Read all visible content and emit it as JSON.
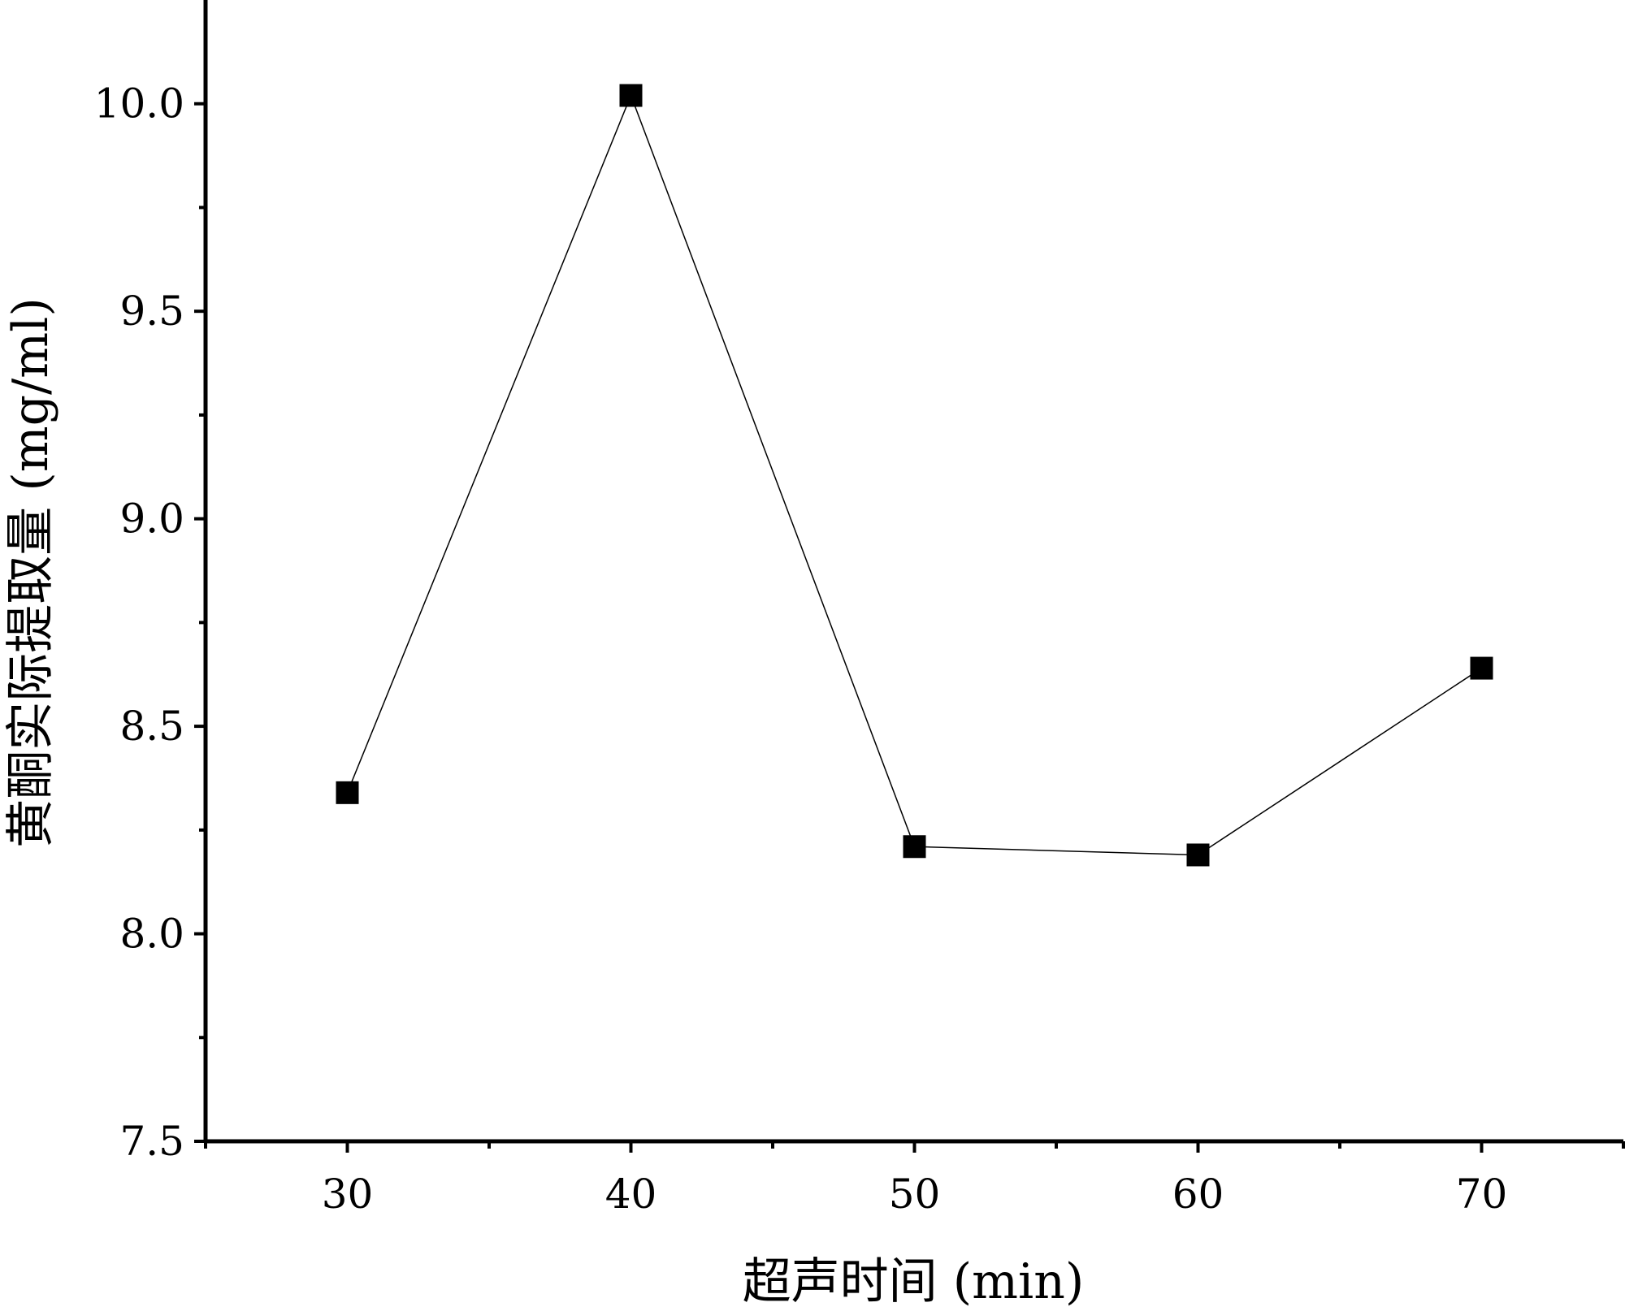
{
  "chart_data": {
    "type": "line",
    "xlabel": "超声时间 (min)",
    "ylabel": "黄酮实际提取量 (mg/ml)",
    "x": [
      30,
      40,
      50,
      60,
      70
    ],
    "series": [
      {
        "values": [
          8.34,
          10.02,
          8.21,
          8.19,
          8.64
        ]
      }
    ],
    "xlim": [
      25,
      75
    ],
    "ylim": [
      7.5,
      10.25
    ],
    "xticks": [
      "30",
      "40",
      "50",
      "60",
      "70"
    ],
    "yticks": [
      "7.5",
      "8.0",
      "8.5",
      "9.0",
      "9.5",
      "10.0"
    ],
    "marker": "square",
    "grid": false,
    "colors": {
      "line": "#000000",
      "marker": "#000000",
      "axis": "#000000"
    }
  }
}
